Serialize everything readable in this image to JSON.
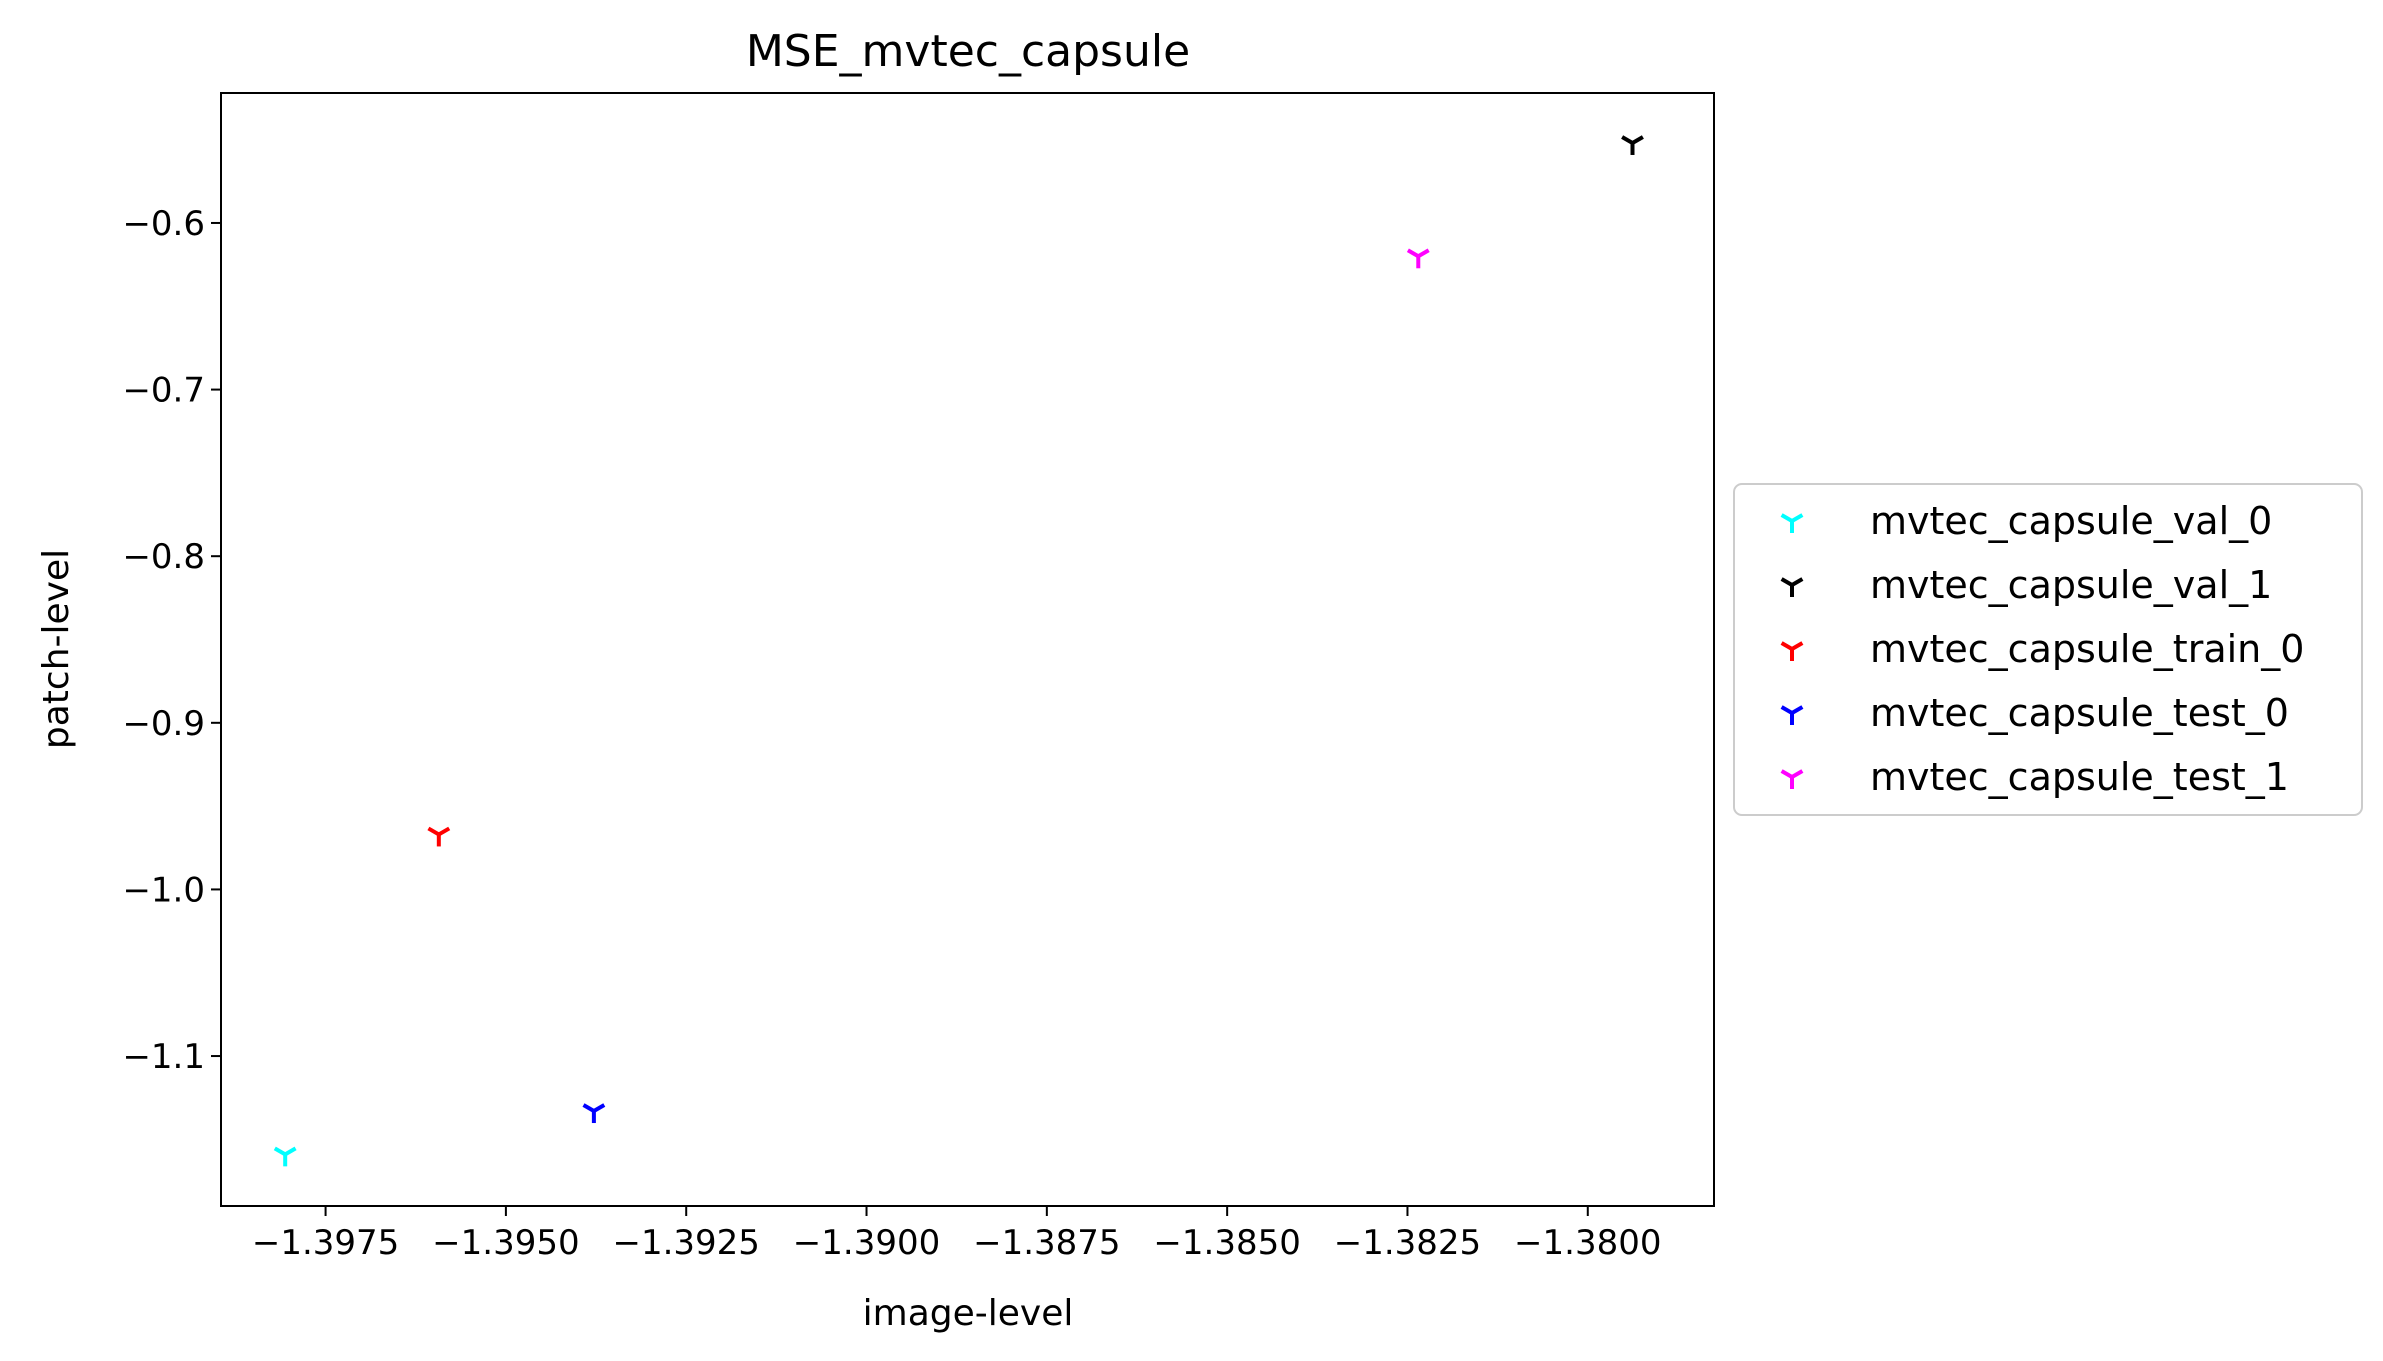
{
  "chart_data": {
    "type": "scatter",
    "title": "MSE_mvtec_capsule",
    "xlabel": "image-level",
    "ylabel": "patch-level",
    "xlim": [
      -1.39895,
      -1.37825
    ],
    "ylim": [
      -1.19,
      -0.522
    ],
    "xticks": [
      -1.3975,
      -1.395,
      -1.3925,
      -1.39,
      -1.3875,
      -1.385,
      -1.3825,
      -1.38
    ],
    "xtick_labels": [
      "−1.3975",
      "−1.3950",
      "−1.3925",
      "−1.3900",
      "−1.3875",
      "−1.3850",
      "−1.3825",
      "−1.3800"
    ],
    "yticks": [
      -0.6,
      -0.7,
      -0.8,
      -0.9,
      -1.0,
      -1.1
    ],
    "ytick_labels": [
      "−0.6",
      "−0.7",
      "−0.8",
      "−0.9",
      "−1.0",
      "−1.1"
    ],
    "grid": false,
    "legend_position": "outside-right",
    "marker": "tri",
    "series": [
      {
        "name": "mvtec_capsule_val_0",
        "color": "#00ffff",
        "x": [
          -1.39806
        ],
        "y": [
          -1.159
        ]
      },
      {
        "name": "mvtec_capsule_val_1",
        "color": "#000000",
        "x": [
          -1.37938
        ],
        "y": [
          -0.552
        ]
      },
      {
        "name": "mvtec_capsule_train_0",
        "color": "#ff0000",
        "x": [
          -1.39593
        ],
        "y": [
          -0.967
        ]
      },
      {
        "name": "mvtec_capsule_test_0",
        "color": "#0000ff",
        "x": [
          -1.39378
        ],
        "y": [
          -1.133
        ]
      },
      {
        "name": "mvtec_capsule_test_1",
        "color": "#ff00ff",
        "x": [
          -1.38235
        ],
        "y": [
          -0.62
        ]
      }
    ]
  }
}
